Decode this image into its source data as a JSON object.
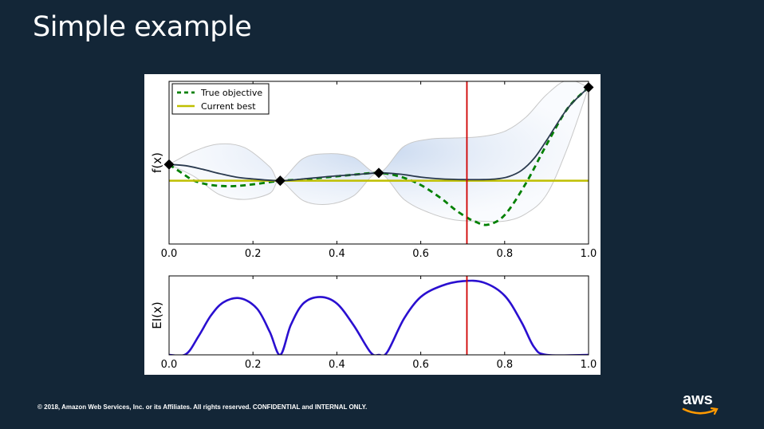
{
  "slide": {
    "title": "Simple example",
    "copyright": "© 2018, Amazon Web Services, Inc. or its Affiliates. All rights reserved. CONFIDENTIAL and INTERNAL ONLY.",
    "logo_text": "aws"
  },
  "colors": {
    "background": "#132637",
    "true_objective": "#008000",
    "current_best": "#bfbf00",
    "posterior_mean": "#2a3a4e",
    "ei_curve": "#2a0fd0",
    "proposal_line": "#d00000"
  },
  "chart_data": [
    {
      "type": "line",
      "ylabel": "f(x)",
      "xlim": [
        0.0,
        1.0
      ],
      "x_ticks": [
        "0.0",
        "0.2",
        "0.4",
        "0.6",
        "0.8",
        "1.0"
      ],
      "y_ticks_labeled": false,
      "legend": {
        "placement": "top-left",
        "entries": [
          "True objective",
          "Current best"
        ]
      },
      "series": [
        {
          "name": "True objective",
          "style": "dashed",
          "x": [
            0.0,
            0.03,
            0.06,
            0.1,
            0.15,
            0.2,
            0.265,
            0.32,
            0.38,
            0.44,
            0.5,
            0.55,
            0.6,
            0.65,
            0.68,
            0.71,
            0.73,
            0.76,
            0.8,
            0.85,
            0.9,
            0.95,
            1.0
          ],
          "y": [
            0.22,
            0.08,
            -0.05,
            -0.12,
            -0.14,
            -0.11,
            -0.05,
            -0.03,
            0.01,
            0.05,
            0.08,
            0.02,
            -0.12,
            -0.35,
            -0.52,
            -0.66,
            -0.73,
            -0.78,
            -0.62,
            -0.1,
            0.55,
            1.15,
            1.5
          ]
        },
        {
          "name": "Current best",
          "style": "solid",
          "x": [
            0.0,
            1.0
          ],
          "y": [
            -0.05,
            -0.05
          ]
        },
        {
          "style": "solid",
          "role": "posterior-mean",
          "x": [
            0.0,
            0.04,
            0.08,
            0.12,
            0.16,
            0.2,
            0.265,
            0.32,
            0.38,
            0.44,
            0.5,
            0.55,
            0.6,
            0.65,
            0.7,
            0.75,
            0.78,
            0.81,
            0.84,
            0.87,
            0.9,
            0.95,
            1.0
          ],
          "y": [
            0.22,
            0.2,
            0.14,
            0.07,
            0.01,
            -0.02,
            -0.05,
            -0.02,
            0.02,
            0.05,
            0.08,
            0.06,
            0.01,
            -0.02,
            -0.03,
            -0.03,
            -0.02,
            0.02,
            0.12,
            0.32,
            0.62,
            1.15,
            1.5
          ]
        }
      ],
      "observations": {
        "x": [
          0.0,
          0.265,
          0.5,
          1.0
        ],
        "y": [
          0.22,
          -0.05,
          0.08,
          1.5
        ]
      },
      "confidence_band": {
        "x": [
          0.0,
          0.06,
          0.12,
          0.18,
          0.24,
          0.265,
          0.32,
          0.38,
          0.44,
          0.5,
          0.56,
          0.62,
          0.68,
          0.74,
          0.8,
          0.85,
          0.9,
          0.95,
          1.0
        ],
        "upper": [
          0.22,
          0.44,
          0.56,
          0.5,
          0.18,
          -0.05,
          0.32,
          0.4,
          0.34,
          0.08,
          0.52,
          0.64,
          0.66,
          0.68,
          0.77,
          1.0,
          1.38,
          1.62,
          1.5
        ],
        "lower": [
          0.22,
          0.02,
          -0.28,
          -0.36,
          -0.26,
          -0.05,
          -0.38,
          -0.44,
          -0.3,
          0.08,
          -0.36,
          -0.58,
          -0.7,
          -0.72,
          -0.72,
          -0.6,
          -0.28,
          0.5,
          1.5
        ]
      },
      "ylim": [
        -1.1,
        1.6
      ],
      "proposal_x": 0.71
    },
    {
      "type": "line",
      "ylabel": "EI(x)",
      "xlim": [
        0.0,
        1.0
      ],
      "x_ticks": [
        "0.0",
        "0.2",
        "0.4",
        "0.6",
        "0.8",
        "1.0"
      ],
      "y_ticks_labeled": false,
      "series": [
        {
          "style": "solid",
          "role": "expected-improvement",
          "x": [
            0.0,
            0.04,
            0.07,
            0.1,
            0.13,
            0.17,
            0.21,
            0.24,
            0.265,
            0.29,
            0.32,
            0.36,
            0.4,
            0.44,
            0.48,
            0.5,
            0.52,
            0.56,
            0.6,
            0.65,
            0.7,
            0.75,
            0.8,
            0.84,
            0.87,
            0.9,
            1.0
          ],
          "y": [
            0.0,
            0.01,
            0.28,
            0.6,
            0.8,
            0.86,
            0.7,
            0.35,
            0.0,
            0.45,
            0.78,
            0.88,
            0.78,
            0.45,
            0.04,
            0.0,
            0.04,
            0.55,
            0.88,
            1.05,
            1.12,
            1.1,
            0.9,
            0.5,
            0.12,
            0.0,
            0.0
          ]
        }
      ],
      "ylim": [
        0.0,
        1.2
      ],
      "proposal_x": 0.71
    }
  ]
}
